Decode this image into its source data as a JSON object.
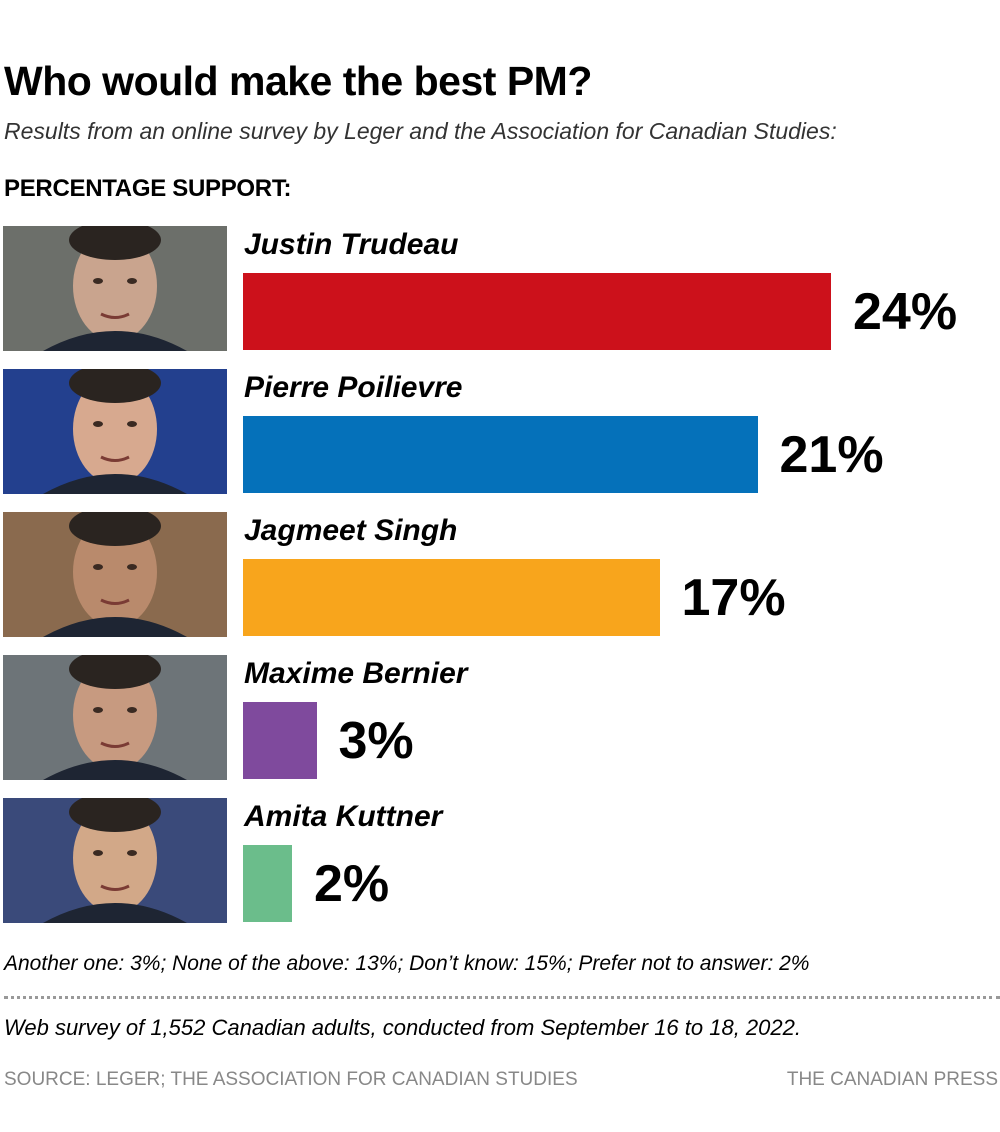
{
  "chart_data": {
    "type": "bar",
    "orientation": "horizontal",
    "title": "Who would make the best PM?",
    "subtitle": "Results from an online survey by Leger and the Association for Canadian Studies:",
    "ylabel": "PERCENTAGE SUPPORT:",
    "categories": [
      "Justin Trudeau",
      "Pierre Poilievre",
      "Jagmeet Singh",
      "Maxime Bernier",
      "Amita Kuttner"
    ],
    "values": [
      24,
      21,
      17,
      3,
      2
    ],
    "value_labels": [
      "24%",
      "21%",
      "17%",
      "3%",
      "2%"
    ],
    "colors": [
      "#cc111b",
      "#0571ba",
      "#f8a51c",
      "#7f4a9d",
      "#6bbd8b"
    ],
    "photo_colors": [
      [
        "#6c6f6a",
        "#c9a48e"
      ],
      [
        "#23408e",
        "#d7a98f"
      ],
      [
        "#8a6a4e",
        "#b98a6c"
      ],
      [
        "#6d7478",
        "#c79a80"
      ],
      [
        "#3a4a7a",
        "#d2a888"
      ]
    ],
    "xlim": [
      0,
      25
    ],
    "grid": false
  },
  "footer": {
    "note": "Another one: 3%; None of the above: 13%; Don’t know: 15%; Prefer not to answer: 2%",
    "method": "Web survey of 1,552 Canadian adults, conducted from September 16 to 18, 2022.",
    "source": "SOURCE: LEGER; THE ASSOCIATION FOR CANADIAN STUDIES",
    "credit": "THE CANADIAN PRESS"
  }
}
